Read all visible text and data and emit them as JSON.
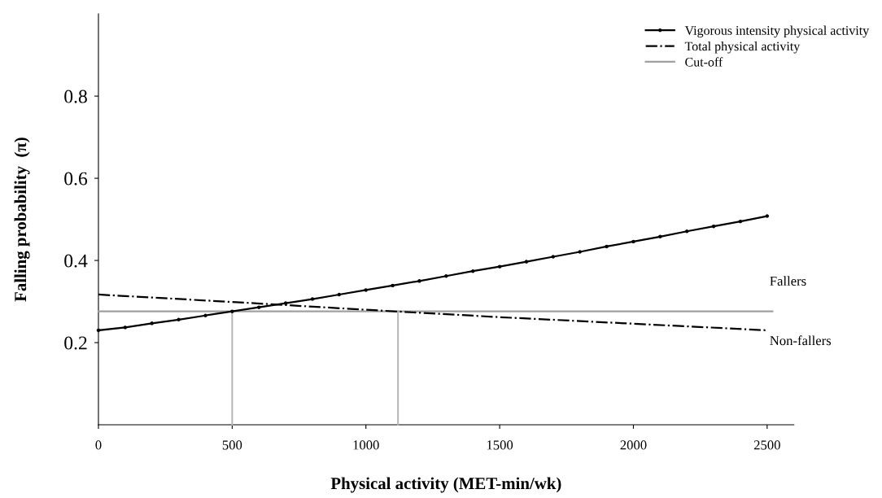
{
  "chart_data": {
    "type": "line",
    "xlabel": "Physical activity (MET-min/wk)",
    "ylabel": "Falling probability  (π)",
    "xlim": [
      0,
      2600
    ],
    "xticks": [
      0,
      500,
      1000,
      1500,
      2000,
      2500
    ],
    "ylim": [
      0,
      1.0
    ],
    "yticks": [
      0.2,
      0.4,
      0.6,
      0.8
    ],
    "grid": false,
    "legend": "top right",
    "series": [
      {
        "name": "Vigorous intensity physical activity",
        "color": "#000000",
        "line_style": "solid",
        "marker": "circle",
        "x": [
          0,
          100,
          200,
          300,
          400,
          500,
          600,
          700,
          800,
          900,
          1000,
          1100,
          1200,
          1300,
          1400,
          1500,
          1600,
          1700,
          1800,
          1900,
          2000,
          2100,
          2200,
          2300,
          2400,
          2500
        ],
        "values": [
          0.23,
          0.237,
          0.247,
          0.256,
          0.266,
          0.276,
          0.286,
          0.296,
          0.306,
          0.317,
          0.328,
          0.339,
          0.35,
          0.362,
          0.374,
          0.385,
          0.397,
          0.409,
          0.421,
          0.434,
          0.446,
          0.458,
          0.471,
          0.483,
          0.495,
          0.508
        ]
      },
      {
        "name": "Total physical activity",
        "color": "#000000",
        "line_style": "dashdot",
        "marker": "none",
        "x": [
          0,
          500,
          1000,
          1500,
          2000,
          2500
        ],
        "values": [
          0.317,
          0.299,
          0.28,
          0.262,
          0.246,
          0.23
        ]
      },
      {
        "name": "Cut-off",
        "color": "#a0a0a0",
        "line_style": "solid",
        "marker": "none",
        "x": [
          0,
          2520
        ],
        "values": [
          0.276,
          0.276
        ]
      },
      {
        "color": "#b4b4b4",
        "line_style": "solid",
        "marker": "none",
        "x": [
          500,
          500
        ],
        "values": [
          0,
          0.276
        ]
      },
      {
        "color": "#b4b4b4",
        "line_style": "solid",
        "marker": "none",
        "x": [
          1120,
          1120
        ],
        "values": [
          0,
          0.276
        ]
      }
    ],
    "annotations": [
      "Fallers",
      "Non-fallers"
    ]
  }
}
